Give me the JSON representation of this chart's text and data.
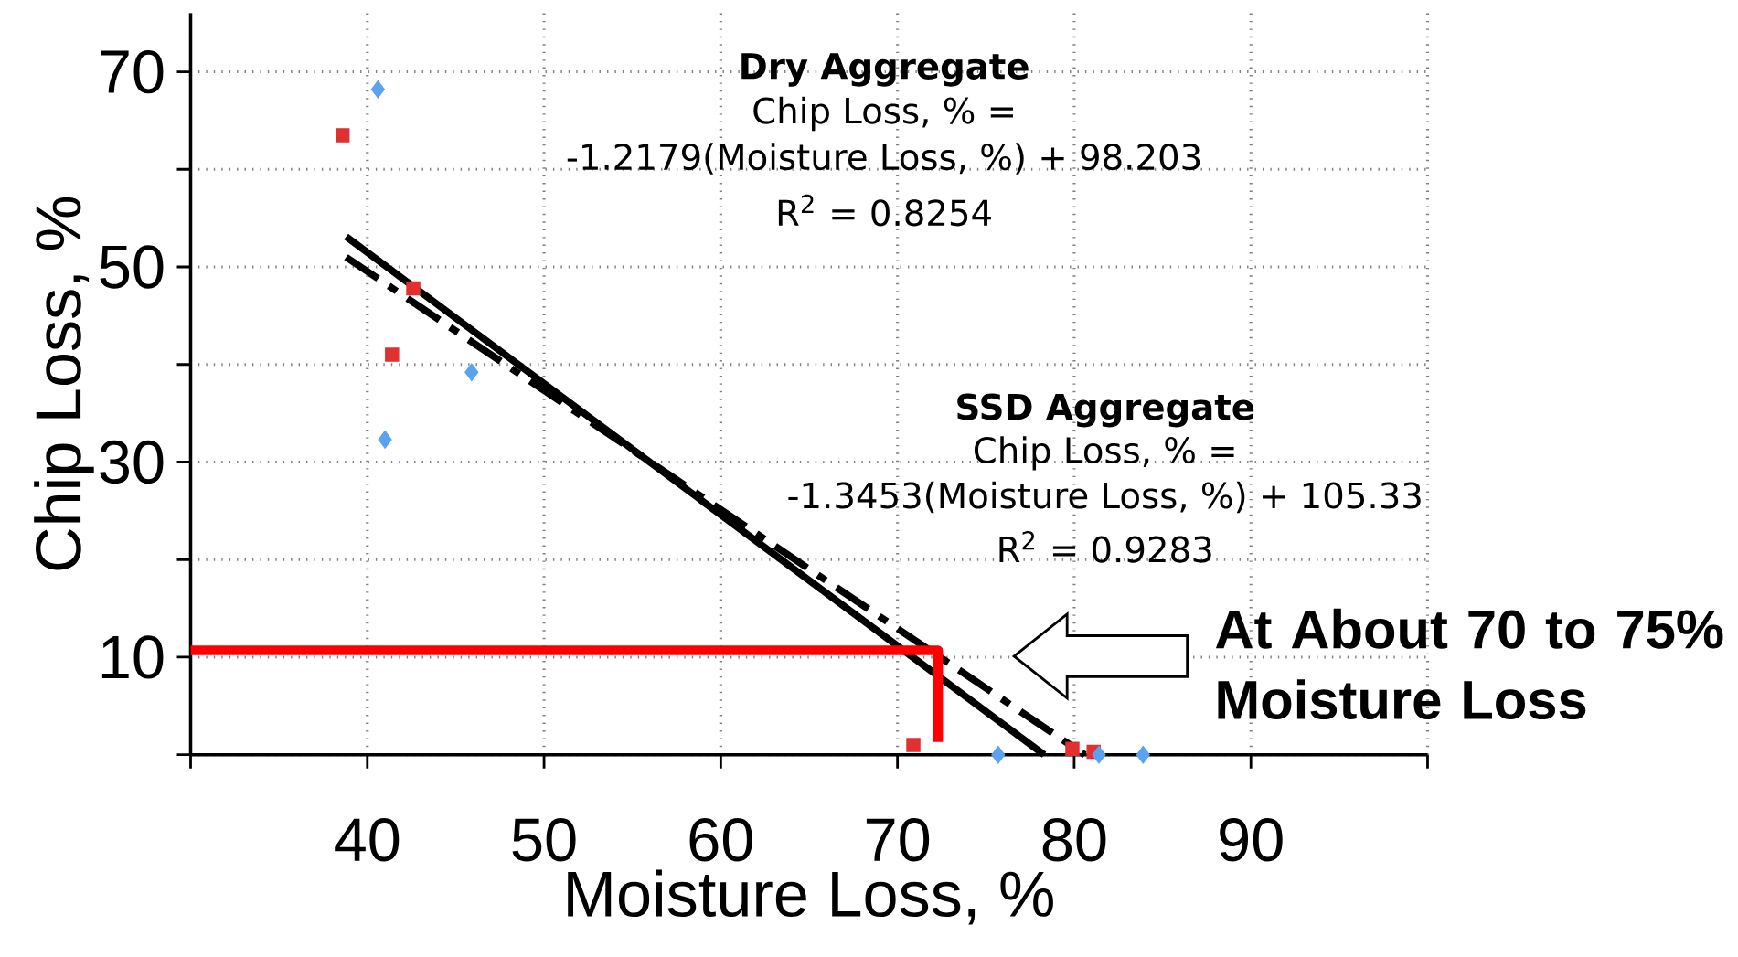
{
  "chart_data": {
    "type": "scatter",
    "xlabel": "Moisture Loss, %",
    "ylabel": "Chip Loss, %",
    "xlim": [
      30,
      100
    ],
    "ylim": [
      0,
      76
    ],
    "xticks": [
      {
        "value": 30,
        "label": null
      },
      40,
      50,
      60,
      70,
      80,
      90,
      {
        "value": 100,
        "label": null
      }
    ],
    "yticks": [
      {
        "value": 0,
        "label": null
      },
      10,
      {
        "value": 20,
        "label": null
      },
      30,
      {
        "value": 40,
        "label": null
      },
      50,
      {
        "value": 60,
        "label": null
      },
      70
    ],
    "grid": true,
    "series": [
      {
        "color": "#e03030",
        "marker": "square",
        "x": [
          38.6,
          41.4,
          42.6,
          70.9,
          79.9,
          81.1
        ],
        "values": [
          63.5,
          41.0,
          47.8,
          1.0,
          0.6,
          0.3
        ]
      },
      {
        "color": "#5ba3f0",
        "marker": "diamond",
        "x": [
          40.6,
          41.0,
          45.9,
          75.7,
          81.4,
          83.9
        ],
        "values": [
          68.2,
          32.3,
          39.2,
          0,
          0,
          0
        ]
      },
      {
        "type": "line",
        "color": "#000000",
        "marker": "none",
        "line_style": "dashed",
        "x": [
          38.8,
          80.6
        ],
        "values": [
          51.0,
          0
        ]
      },
      {
        "type": "line",
        "color": "#000000",
        "marker": "none",
        "line_style": "solid",
        "x": [
          38.8,
          78.3
        ],
        "values": [
          53.1,
          0
        ]
      },
      {
        "type": "line",
        "color": "#ff0000",
        "marker": "none",
        "line_style": "solid",
        "x": [
          30,
          72.3,
          72.3
        ],
        "values": [
          10.7,
          10.7,
          1.3
        ]
      }
    ],
    "annotations": [
      "**Dry Aggregate**",
      "Chip Loss, % =",
      "-1.2179(Moisture Loss, %) + 98.203",
      "R$^{2}$ = 0.8254",
      "**SSD Aggregate**",
      "Chip Loss, % =",
      "-1.3453(Moisture Loss, %) + 105.33",
      "R$^{2}$ = 0.9283",
      "At About 70 to 75% Moisture Loss"
    ]
  }
}
